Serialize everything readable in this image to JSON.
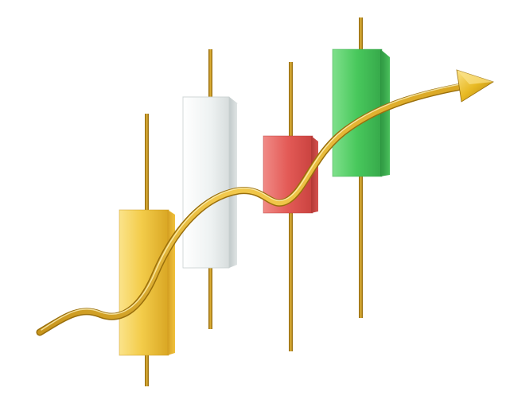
{
  "scene": {
    "subject": "candlestick-chart-with-rising-arrow",
    "background": "#ffffff",
    "colors": {
      "gold": "#e8b923",
      "gold_light": "#f7dc6b",
      "gold_dark": "#b8860b",
      "white_candle": "#eef2f2",
      "white_candle_shade": "#bfc7c9",
      "red_candle": "#e35a56",
      "red_candle_shade": "#b83c3a",
      "green_candle": "#45c35a",
      "green_candle_shade": "#2e9a43",
      "wick": "#b8860b"
    },
    "candles": [
      {
        "name": "gold",
        "color": "gold"
      },
      {
        "name": "white",
        "color": "white_candle"
      },
      {
        "name": "red",
        "color": "red_candle"
      },
      {
        "name": "green",
        "color": "green_candle"
      }
    ],
    "arrow": {
      "color": "gold",
      "direction": "up-right"
    }
  }
}
